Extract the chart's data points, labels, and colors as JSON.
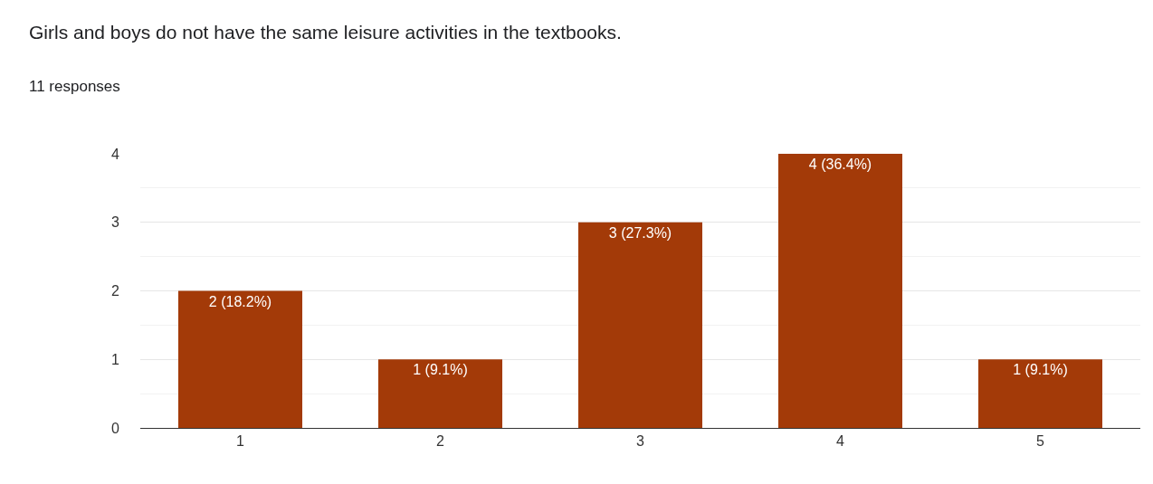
{
  "chart_data": {
    "type": "bar",
    "title": "Girls and boys do not have the same leisure activities in the textbooks.",
    "subtitle": "11 responses",
    "categories": [
      "1",
      "2",
      "3",
      "4",
      "5"
    ],
    "values": [
      2,
      1,
      3,
      4,
      1
    ],
    "value_labels": [
      "2 (18.2%)",
      "1 (9.1%)",
      "3 (27.3%)",
      "4 (36.4%)",
      "1 (9.1%)"
    ],
    "color": "#a33a08",
    "ylim": [
      0,
      4
    ],
    "yticks": [
      0,
      1,
      2,
      3,
      4
    ],
    "grid": "y"
  }
}
